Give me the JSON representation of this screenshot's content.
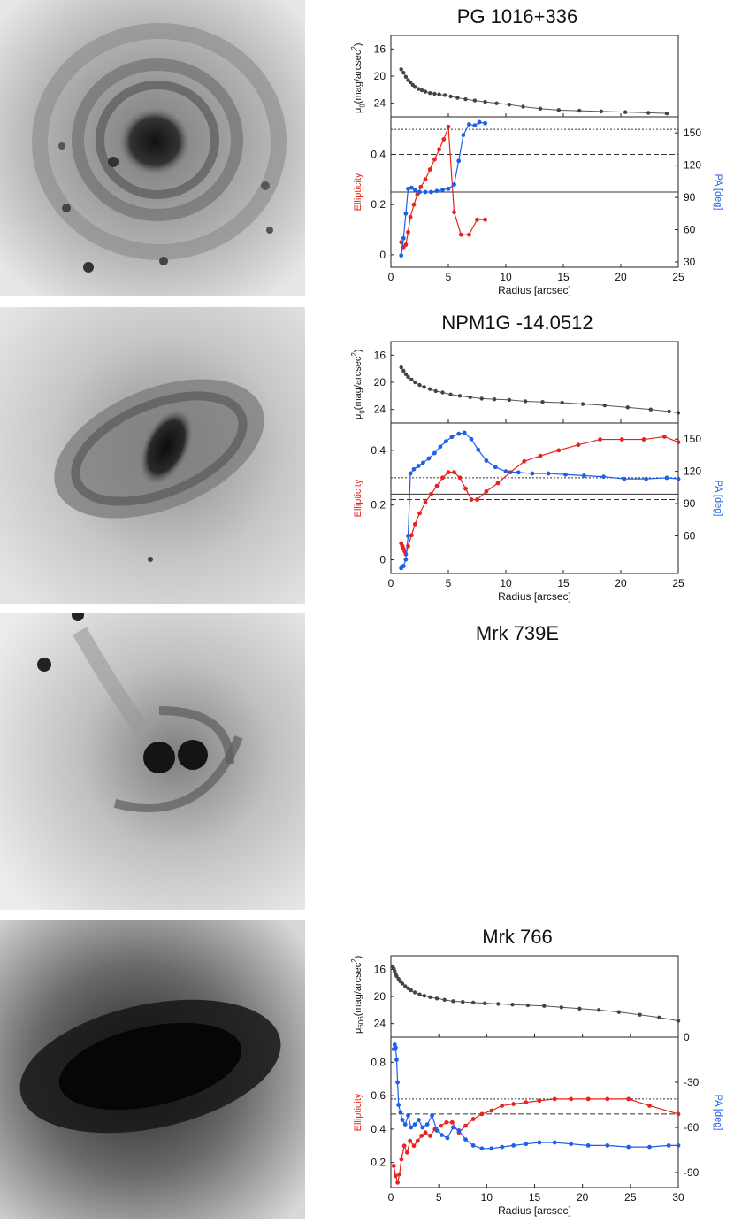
{
  "panels": [
    {
      "title": "PG 1016+336",
      "image": {
        "kind": "spiral-face-on"
      },
      "chart_data": {
        "type": "line",
        "title": "PG 1016+336",
        "xlabel": "Radius [arcsec]",
        "xlim": [
          0,
          25
        ],
        "xticks": [
          0,
          5,
          10,
          15,
          20,
          25
        ],
        "sb": {
          "ylabel_main": "μ",
          "ylabel_sub": "g",
          "ylabel_rest": "(mag/arcsec",
          "ylabel_sup": "2",
          "ylabel_close": ")",
          "ylim": [
            26,
            14
          ],
          "yticks": [
            16,
            20,
            24
          ],
          "x": [
            0.9,
            1.1,
            1.3,
            1.5,
            1.7,
            1.9,
            2.1,
            2.4,
            2.7,
            3.0,
            3.4,
            3.8,
            4.2,
            4.7,
            5.2,
            5.8,
            6.5,
            7.3,
            8.2,
            9.2,
            10.3,
            11.5,
            13.0,
            14.6,
            16.4,
            18.3,
            20.4,
            22.4,
            24.0
          ],
          "y": [
            19.0,
            19.5,
            20.1,
            20.6,
            20.9,
            21.3,
            21.6,
            21.9,
            22.1,
            22.3,
            22.5,
            22.6,
            22.7,
            22.8,
            23.0,
            23.2,
            23.4,
            23.6,
            23.8,
            24.0,
            24.2,
            24.5,
            24.8,
            25.0,
            25.1,
            25.2,
            25.3,
            25.4,
            25.5
          ]
        },
        "ellipticity": {
          "ylabel": "Ellipticity",
          "ylim": [
            -0.05,
            0.55
          ],
          "yticks": [
            0,
            0.2,
            0.4
          ],
          "x": [
            0.9,
            1.1,
            1.3,
            1.5,
            1.7,
            2.0,
            2.3,
            2.6,
            3.0,
            3.4,
            3.8,
            4.2,
            4.6,
            5.0,
            5.5,
            6.1,
            6.8,
            7.5,
            8.2
          ],
          "y": [
            0.05,
            0.03,
            0.04,
            0.09,
            0.15,
            0.2,
            0.24,
            0.27,
            0.3,
            0.34,
            0.38,
            0.42,
            0.46,
            0.51,
            0.17,
            0.08,
            0.08,
            0.14,
            0.14
          ],
          "color": "#e8231d"
        },
        "pa": {
          "ylabel": "PA [deg]",
          "ylim": [
            25,
            165
          ],
          "yticks": [
            30,
            60,
            90,
            120,
            150
          ],
          "x": [
            0.9,
            1.1,
            1.3,
            1.5,
            1.8,
            2.1,
            2.5,
            3.0,
            3.5,
            4.0,
            4.5,
            5.0,
            5.5,
            5.9,
            6.3,
            6.8,
            7.3,
            7.7,
            8.2
          ],
          "y": [
            36,
            52,
            75,
            98,
            99,
            97,
            95,
            95,
            95,
            96,
            97,
            98,
            102,
            124,
            148,
            158,
            157,
            160,
            159
          ],
          "color": "#1c5fe8"
        },
        "hlines": [
          {
            "y": 0.5,
            "style": "dotted"
          },
          {
            "y": 0.4,
            "style": "dashed"
          },
          {
            "y": 0.25,
            "style": "solid"
          }
        ]
      }
    },
    {
      "title": "NPM1G -14.0512",
      "image": {
        "kind": "barred-inclined"
      },
      "chart_data": {
        "type": "line",
        "title": "NPM1G -14.0512",
        "xlabel": "Radius [arcsec]",
        "xlim": [
          0,
          25
        ],
        "xticks": [
          0,
          5,
          10,
          15,
          20,
          25
        ],
        "sb": {
          "ylabel_main": "μ",
          "ylabel_sub": "g",
          "ylabel_rest": "(mag/arcsec",
          "ylabel_sup": "2",
          "ylabel_close": ")",
          "ylim": [
            26,
            14
          ],
          "yticks": [
            16,
            20,
            24
          ],
          "x": [
            0.9,
            1.1,
            1.3,
            1.5,
            1.8,
            2.1,
            2.5,
            2.9,
            3.4,
            3.9,
            4.5,
            5.2,
            6.0,
            6.9,
            7.9,
            9.0,
            10.3,
            11.7,
            13.2,
            14.9,
            16.7,
            18.6,
            20.6,
            22.6,
            24.2,
            25.0
          ],
          "y": [
            17.8,
            18.3,
            18.8,
            19.2,
            19.6,
            20.0,
            20.4,
            20.7,
            21.0,
            21.3,
            21.5,
            21.8,
            22.0,
            22.2,
            22.4,
            22.5,
            22.6,
            22.8,
            22.9,
            23.0,
            23.2,
            23.4,
            23.7,
            24.0,
            24.3,
            24.5
          ],
          "color": "#444"
        },
        "ellipticity": {
          "ylabel": "Ellipticity",
          "ylim": [
            -0.05,
            0.5
          ],
          "yticks": [
            0,
            0.2,
            0.4
          ],
          "x": [
            0.9,
            1.0,
            1.1,
            1.2,
            1.3,
            1.5,
            1.8,
            2.1,
            2.5,
            3.0,
            3.5,
            4.0,
            4.5,
            5.0,
            5.5,
            6.0,
            6.5,
            7.0,
            7.5,
            8.3,
            9.3,
            10.4,
            11.6,
            13.0,
            14.6,
            16.3,
            18.2,
            20.1,
            22.0,
            23.8,
            25.0
          ],
          "y": [
            0.06,
            0.05,
            0.04,
            0.03,
            0.02,
            0.05,
            0.09,
            0.13,
            0.17,
            0.21,
            0.24,
            0.27,
            0.3,
            0.32,
            0.32,
            0.3,
            0.26,
            0.22,
            0.22,
            0.25,
            0.28,
            0.32,
            0.36,
            0.38,
            0.4,
            0.42,
            0.44,
            0.44,
            0.44,
            0.45,
            0.43
          ],
          "color": "#e8231d"
        },
        "pa": {
          "ylabel": "PA [deg]",
          "ylim": [
            25,
            165
          ],
          "yticks": [
            60,
            90,
            120,
            150
          ],
          "x": [
            0.9,
            1.1,
            1.3,
            1.5,
            1.7,
            2.0,
            2.4,
            2.8,
            3.3,
            3.8,
            4.3,
            4.8,
            5.3,
            5.9,
            6.4,
            7.0,
            7.6,
            8.3,
            9.1,
            10.0,
            11.1,
            12.3,
            13.7,
            15.2,
            16.8,
            18.5,
            20.3,
            22.2,
            24.0,
            25.0
          ],
          "y": [
            30,
            32,
            38,
            60,
            118,
            122,
            125,
            128,
            132,
            137,
            143,
            148,
            152,
            155,
            156,
            150,
            140,
            130,
            124,
            120,
            119,
            118,
            118,
            117,
            116,
            115,
            113,
            113,
            114,
            113
          ],
          "color": "#1c5fe8"
        },
        "hlines": [
          {
            "y": 0.3,
            "style": "dotted"
          },
          {
            "y": 0.24,
            "style": "solid"
          },
          {
            "y": 0.22,
            "style": "dashed"
          }
        ]
      }
    },
    {
      "title": "Mrk 739E",
      "image": {
        "kind": "double-nucleus"
      },
      "chart_data": null
    },
    {
      "title": "Mrk 766",
      "image": {
        "kind": "elongated-dark"
      },
      "chart_data": {
        "type": "line",
        "title": "Mrk 766",
        "xlabel": "Radius [arcsec]",
        "xlim": [
          0,
          30
        ],
        "xticks": [
          0,
          5,
          10,
          15,
          20,
          25,
          30
        ],
        "sb": {
          "ylabel_main": "μ",
          "ylabel_sub": "606",
          "ylabel_rest": "(mag/arcsec",
          "ylabel_sup": "2",
          "ylabel_close": ")",
          "ylim": [
            26,
            14
          ],
          "yticks": [
            16,
            20,
            24
          ],
          "x": [
            0.2,
            0.3,
            0.4,
            0.5,
            0.6,
            0.8,
            1.0,
            1.2,
            1.5,
            1.8,
            2.1,
            2.5,
            3.0,
            3.5,
            4.1,
            4.8,
            5.6,
            6.5,
            7.5,
            8.6,
            9.8,
            11.2,
            12.7,
            14.3,
            16.0,
            17.8,
            19.7,
            21.7,
            23.8,
            26.0,
            28.0,
            30.0
          ],
          "y": [
            15.6,
            15.9,
            16.3,
            16.7,
            17.0,
            17.4,
            17.8,
            18.1,
            18.5,
            18.8,
            19.1,
            19.4,
            19.7,
            19.9,
            20.1,
            20.3,
            20.5,
            20.7,
            20.8,
            20.9,
            21.0,
            21.1,
            21.2,
            21.3,
            21.4,
            21.6,
            21.8,
            22.0,
            22.3,
            22.7,
            23.1,
            23.6
          ],
          "color": "#444"
        },
        "ellipticity": {
          "ylabel": "Ellipticity",
          "ylim": [
            0.05,
            0.95
          ],
          "yticks": [
            0.2,
            0.4,
            0.6,
            0.8
          ],
          "x": [
            0.3,
            0.5,
            0.7,
            0.9,
            1.1,
            1.4,
            1.7,
            2.0,
            2.4,
            2.8,
            3.2,
            3.6,
            4.1,
            4.6,
            5.2,
            5.8,
            6.4,
            7.1,
            7.8,
            8.6,
            9.5,
            10.5,
            11.6,
            12.8,
            14.1,
            15.5,
            17.1,
            18.8,
            20.6,
            22.6,
            24.8,
            27.0,
            30.0
          ],
          "y": [
            0.18,
            0.12,
            0.08,
            0.13,
            0.22,
            0.3,
            0.26,
            0.33,
            0.3,
            0.33,
            0.36,
            0.38,
            0.36,
            0.4,
            0.42,
            0.44,
            0.44,
            0.38,
            0.42,
            0.46,
            0.49,
            0.51,
            0.54,
            0.55,
            0.56,
            0.57,
            0.58,
            0.58,
            0.58,
            0.58,
            0.58,
            0.54,
            0.49
          ],
          "color": "#e8231d"
        },
        "pa": {
          "ylabel": "PA [deg]",
          "ylim": [
            -100,
            0
          ],
          "yticks": [
            0,
            -30,
            -60,
            -90
          ],
          "x": [
            0.3,
            0.4,
            0.5,
            0.6,
            0.7,
            0.8,
            1.0,
            1.2,
            1.5,
            1.8,
            2.1,
            2.5,
            2.9,
            3.3,
            3.8,
            4.3,
            4.8,
            5.3,
            5.9,
            6.5,
            7.1,
            7.8,
            8.6,
            9.5,
            10.5,
            11.6,
            12.8,
            14.1,
            15.5,
            17.1,
            18.8,
            20.6,
            22.6,
            24.8,
            27.0,
            29.0,
            30.0
          ],
          "y": [
            -8,
            -5,
            -7,
            -15,
            -30,
            -45,
            -50,
            -55,
            -58,
            -52,
            -60,
            -58,
            -55,
            -60,
            -58,
            -52,
            -62,
            -65,
            -67,
            -60,
            -62,
            -68,
            -72,
            -74,
            -74,
            -73,
            -72,
            -71,
            -70,
            -70,
            -71,
            -72,
            -72,
            -73,
            -73,
            -72,
            -72
          ],
          "color": "#1c5fe8"
        },
        "hlines": [
          {
            "y": 0.58,
            "style": "dotted"
          },
          {
            "y": 0.49,
            "style": "dashed"
          }
        ]
      }
    }
  ]
}
